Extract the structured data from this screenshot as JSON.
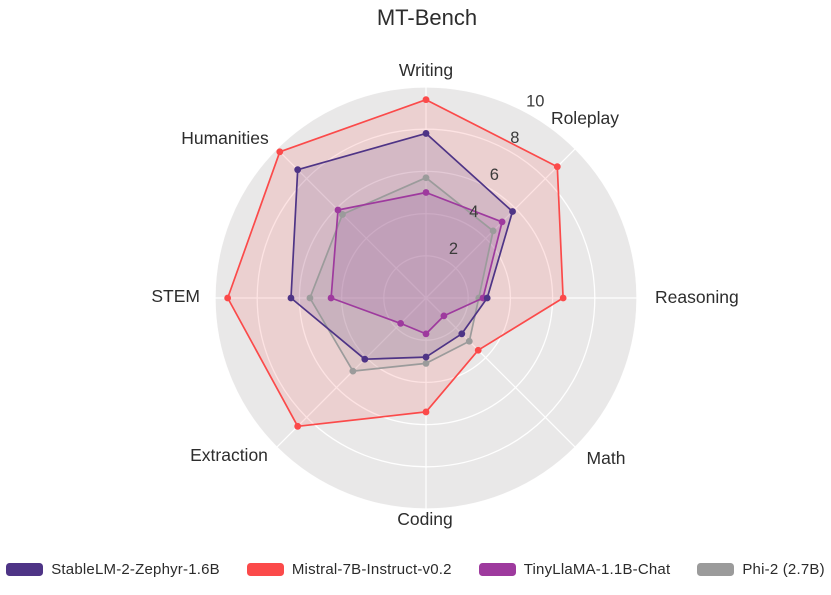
{
  "title": "MT-Bench",
  "chart_data": {
    "type": "radar",
    "categories": [
      "Writing",
      "Roleplay",
      "Reasoning",
      "Math",
      "Coding",
      "Extraction",
      "STEM",
      "Humanities"
    ],
    "radial_ticks": [
      2,
      4,
      6,
      8,
      10
    ],
    "range": [
      0,
      10
    ],
    "grid": "circular-white-on-gray",
    "legend_position": "bottom",
    "background_circle_color": "#e9e8e8",
    "grid_line_color": "#ffffff",
    "text_color": "#2d2d2d",
    "series": [
      {
        "name": "StableLM-2-Zephyr-1.6B",
        "color": "#4e3486",
        "values": [
          7.8,
          5.8,
          2.9,
          2.4,
          2.8,
          4.1,
          6.4,
          8.6
        ]
      },
      {
        "name": "Mistral-7B-Instruct-v0.2",
        "color": "#fb4a4a",
        "values": [
          9.4,
          8.8,
          6.5,
          3.5,
          5.4,
          8.6,
          9.4,
          9.8
        ]
      },
      {
        "name": "TinyLlaMA-1.1B-Chat",
        "color": "#9e3a9e",
        "values": [
          5.0,
          5.1,
          2.7,
          1.2,
          1.7,
          1.7,
          4.5,
          5.9
        ]
      },
      {
        "name": "Phi-2 (2.7B)",
        "color": "#9b9b9b",
        "values": [
          5.7,
          4.5,
          2.5,
          2.9,
          3.1,
          4.9,
          5.5,
          5.6
        ]
      }
    ]
  }
}
